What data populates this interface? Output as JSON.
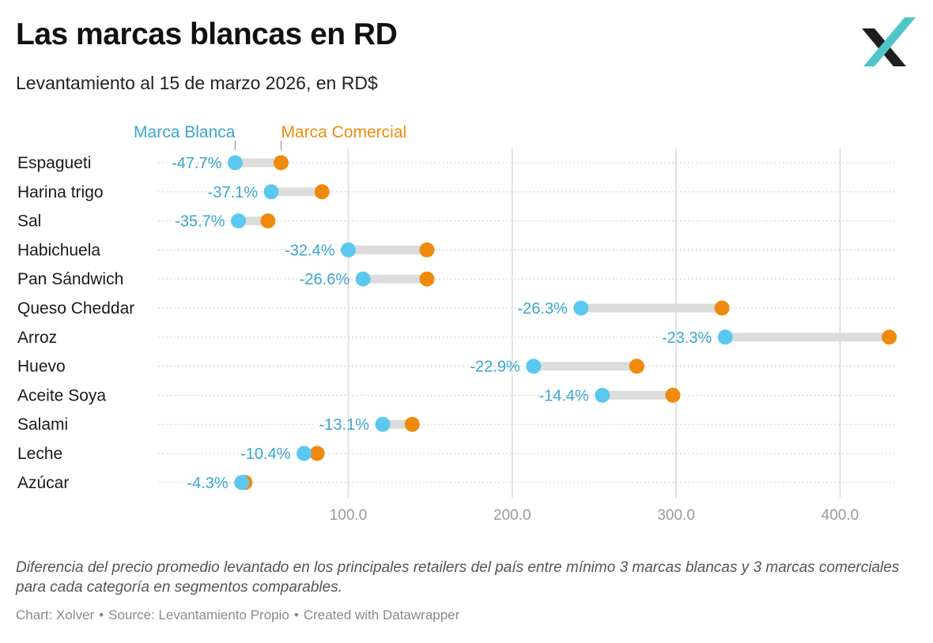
{
  "header": {
    "title": "Las marcas blancas en RD",
    "subtitle": "Levantamiento al 15 de marzo 2026, en RD$",
    "logo_icon": "xolver-x-logo-icon"
  },
  "colors": {
    "marca_blanca": "#5bc8f0",
    "marca_comercial": "#f08a0c",
    "label_blue": "#3aa6cf",
    "legend_orange": "#f08a0c",
    "connector": "#dcdcdc",
    "grid": "#d9d9d9",
    "tick_text": "#9a9a9a",
    "logo_dark": "#1f1f1f",
    "logo_teal": "#4ec6c9"
  },
  "chart_data": {
    "type": "dot-range",
    "title": "Las marcas blancas en RD",
    "subtitle": "Levantamiento al 15 de marzo 2026, en RD$",
    "categories": [
      "Espagueti",
      "Harina trigo",
      "Sal",
      "Habichuela",
      "Pan Sándwich",
      "Queso Cheddar",
      "Arroz",
      "Huevo",
      "Aceite Soya",
      "Salami",
      "Leche",
      "Azúcar"
    ],
    "series": [
      {
        "name": "Marca Blanca",
        "values": [
          31,
          53,
          33,
          100,
          109,
          242,
          330,
          213,
          255,
          121,
          73,
          35
        ]
      },
      {
        "name": "Marca Comercial",
        "values": [
          59,
          84,
          51,
          148,
          148,
          328,
          430,
          276,
          298,
          139,
          81,
          37
        ]
      }
    ],
    "difference_labels": [
      "-47.7%",
      "-37.1%",
      "-35.7%",
      "-32.4%",
      "-26.6%",
      "-26.3%",
      "-23.3%",
      "-22.9%",
      "-14.4%",
      "-13.1%",
      "-10.4%",
      "-4.3%"
    ],
    "x_ticks": [
      100,
      200,
      300,
      400
    ],
    "x_tick_labels": [
      "100.0",
      "200.0",
      "300.0",
      "400.0"
    ],
    "xlim": [
      -16,
      435
    ],
    "xlabel": "",
    "ylabel": "",
    "grid": true,
    "legend_placement": "top-left"
  },
  "footer": {
    "note": "Diferencia del precio promedio levantado en los principales retailers del país entre mínimo 3 marcas blancas y 3 marcas comerciales para cada categoría en segmentos comparables.",
    "chart_credit": "Chart: Xolver",
    "source": "Source: Levantamiento Propio",
    "created": "Created with Datawrapper",
    "separator": "•"
  }
}
